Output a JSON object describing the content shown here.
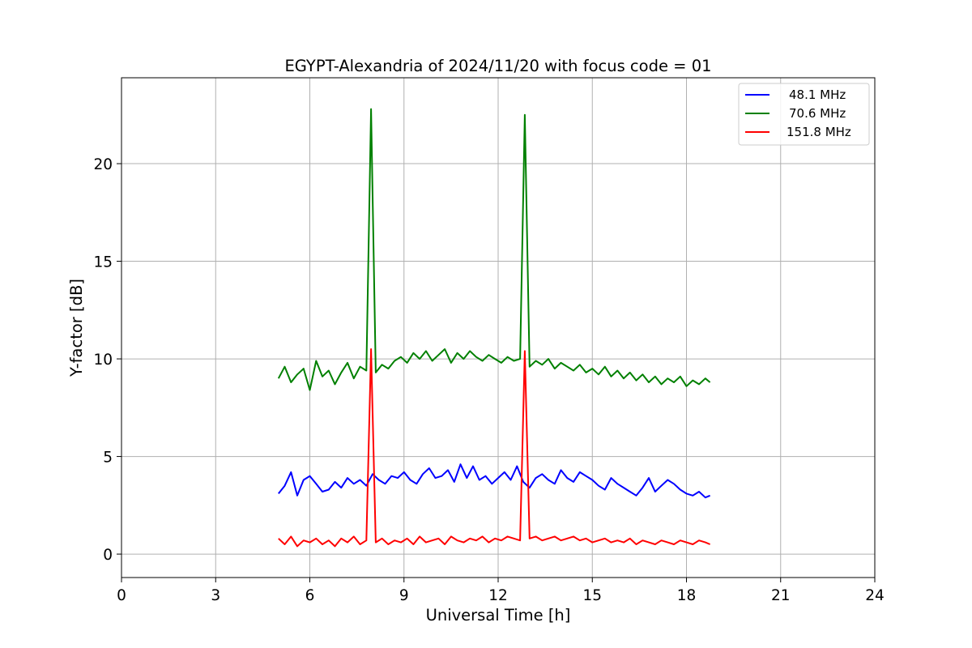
{
  "chart_data": {
    "type": "line",
    "title": "EGYPT-Alexandria of 2024/11/20 with focus code = 01",
    "xlabel": "Universal Time [h]",
    "ylabel": "Y-factor [dB]",
    "xlim": [
      0,
      24
    ],
    "ylim": [
      -1.2,
      24.4
    ],
    "xticks": [
      0,
      3,
      6,
      9,
      12,
      15,
      18,
      21,
      24
    ],
    "yticks": [
      0,
      5,
      10,
      15,
      20
    ],
    "grid": true,
    "legend_position": "top-right",
    "series": [
      {
        "name": "48.1 MHz",
        "color": "#0000ff",
        "x": [
          5.0,
          5.2,
          5.4,
          5.6,
          5.8,
          6.0,
          6.2,
          6.4,
          6.6,
          6.8,
          7.0,
          7.2,
          7.4,
          7.6,
          7.8,
          8.0,
          8.2,
          8.4,
          8.6,
          8.8,
          9.0,
          9.2,
          9.4,
          9.6,
          9.8,
          10.0,
          10.2,
          10.4,
          10.6,
          10.8,
          11.0,
          11.2,
          11.4,
          11.6,
          11.8,
          12.0,
          12.2,
          12.4,
          12.6,
          12.8,
          13.0,
          13.2,
          13.4,
          13.6,
          13.8,
          14.0,
          14.2,
          14.4,
          14.6,
          14.8,
          15.0,
          15.2,
          15.4,
          15.6,
          15.8,
          16.0,
          16.2,
          16.4,
          16.6,
          16.8,
          17.0,
          17.2,
          17.4,
          17.6,
          17.8,
          18.0,
          18.2,
          18.4,
          18.6,
          18.75
        ],
        "y": [
          3.1,
          3.5,
          4.2,
          3.0,
          3.8,
          4.0,
          3.6,
          3.2,
          3.3,
          3.7,
          3.4,
          3.9,
          3.6,
          3.8,
          3.5,
          4.1,
          3.8,
          3.6,
          4.0,
          3.9,
          4.2,
          3.8,
          3.6,
          4.1,
          4.4,
          3.9,
          4.0,
          4.3,
          3.7,
          4.6,
          3.9,
          4.5,
          3.8,
          4.0,
          3.6,
          3.9,
          4.2,
          3.8,
          4.5,
          3.7,
          3.4,
          3.9,
          4.1,
          3.8,
          3.6,
          4.3,
          3.9,
          3.7,
          4.2,
          4.0,
          3.8,
          3.5,
          3.3,
          3.9,
          3.6,
          3.4,
          3.2,
          3.0,
          3.4,
          3.9,
          3.2,
          3.5,
          3.8,
          3.6,
          3.3,
          3.1,
          3.0,
          3.2,
          2.9,
          3.0
        ]
      },
      {
        "name": "70.6 MHz",
        "color": "#008000",
        "x": [
          5.0,
          5.2,
          5.4,
          5.6,
          5.8,
          6.0,
          6.2,
          6.4,
          6.6,
          6.8,
          7.0,
          7.2,
          7.4,
          7.6,
          7.8,
          7.95,
          8.1,
          8.3,
          8.5,
          8.7,
          8.9,
          9.1,
          9.3,
          9.5,
          9.7,
          9.9,
          10.1,
          10.3,
          10.5,
          10.7,
          10.9,
          11.1,
          11.3,
          11.5,
          11.7,
          11.9,
          12.1,
          12.3,
          12.5,
          12.7,
          12.85,
          13.0,
          13.2,
          13.4,
          13.6,
          13.8,
          14.0,
          14.2,
          14.4,
          14.6,
          14.8,
          15.0,
          15.2,
          15.4,
          15.6,
          15.8,
          16.0,
          16.2,
          16.4,
          16.6,
          16.8,
          17.0,
          17.2,
          17.4,
          17.6,
          17.8,
          18.0,
          18.2,
          18.4,
          18.6,
          18.75
        ],
        "y": [
          9.0,
          9.6,
          8.8,
          9.2,
          9.5,
          8.4,
          9.9,
          9.1,
          9.4,
          8.7,
          9.3,
          9.8,
          9.0,
          9.6,
          9.4,
          22.8,
          9.3,
          9.7,
          9.5,
          9.9,
          10.1,
          9.8,
          10.3,
          10.0,
          10.4,
          9.9,
          10.2,
          10.5,
          9.8,
          10.3,
          10.0,
          10.4,
          10.1,
          9.9,
          10.2,
          10.0,
          9.8,
          10.1,
          9.9,
          10.0,
          22.5,
          9.6,
          9.9,
          9.7,
          10.0,
          9.5,
          9.8,
          9.6,
          9.4,
          9.7,
          9.3,
          9.5,
          9.2,
          9.6,
          9.1,
          9.4,
          9.0,
          9.3,
          8.9,
          9.2,
          8.8,
          9.1,
          8.7,
          9.0,
          8.8,
          9.1,
          8.6,
          8.9,
          8.7,
          9.0,
          8.8
        ]
      },
      {
        "name": "151.8 MHz",
        "color": "#ff0000",
        "x": [
          5.0,
          5.2,
          5.4,
          5.6,
          5.8,
          6.0,
          6.2,
          6.4,
          6.6,
          6.8,
          7.0,
          7.2,
          7.4,
          7.6,
          7.8,
          7.95,
          8.1,
          8.3,
          8.5,
          8.7,
          8.9,
          9.1,
          9.3,
          9.5,
          9.7,
          9.9,
          10.1,
          10.3,
          10.5,
          10.7,
          10.9,
          11.1,
          11.3,
          11.5,
          11.7,
          11.9,
          12.1,
          12.3,
          12.5,
          12.7,
          12.85,
          13.0,
          13.2,
          13.4,
          13.6,
          13.8,
          14.0,
          14.2,
          14.4,
          14.6,
          14.8,
          15.0,
          15.2,
          15.4,
          15.6,
          15.8,
          16.0,
          16.2,
          16.4,
          16.6,
          16.8,
          17.0,
          17.2,
          17.4,
          17.6,
          17.8,
          18.0,
          18.2,
          18.4,
          18.6,
          18.75
        ],
        "y": [
          0.8,
          0.5,
          0.9,
          0.4,
          0.7,
          0.6,
          0.8,
          0.5,
          0.7,
          0.4,
          0.8,
          0.6,
          0.9,
          0.5,
          0.7,
          10.5,
          0.6,
          0.8,
          0.5,
          0.7,
          0.6,
          0.8,
          0.5,
          0.9,
          0.6,
          0.7,
          0.8,
          0.5,
          0.9,
          0.7,
          0.6,
          0.8,
          0.7,
          0.9,
          0.6,
          0.8,
          0.7,
          0.9,
          0.8,
          0.7,
          10.4,
          0.8,
          0.9,
          0.7,
          0.8,
          0.9,
          0.7,
          0.8,
          0.9,
          0.7,
          0.8,
          0.6,
          0.7,
          0.8,
          0.6,
          0.7,
          0.6,
          0.8,
          0.5,
          0.7,
          0.6,
          0.5,
          0.7,
          0.6,
          0.5,
          0.7,
          0.6,
          0.5,
          0.7,
          0.6,
          0.5
        ]
      }
    ]
  }
}
